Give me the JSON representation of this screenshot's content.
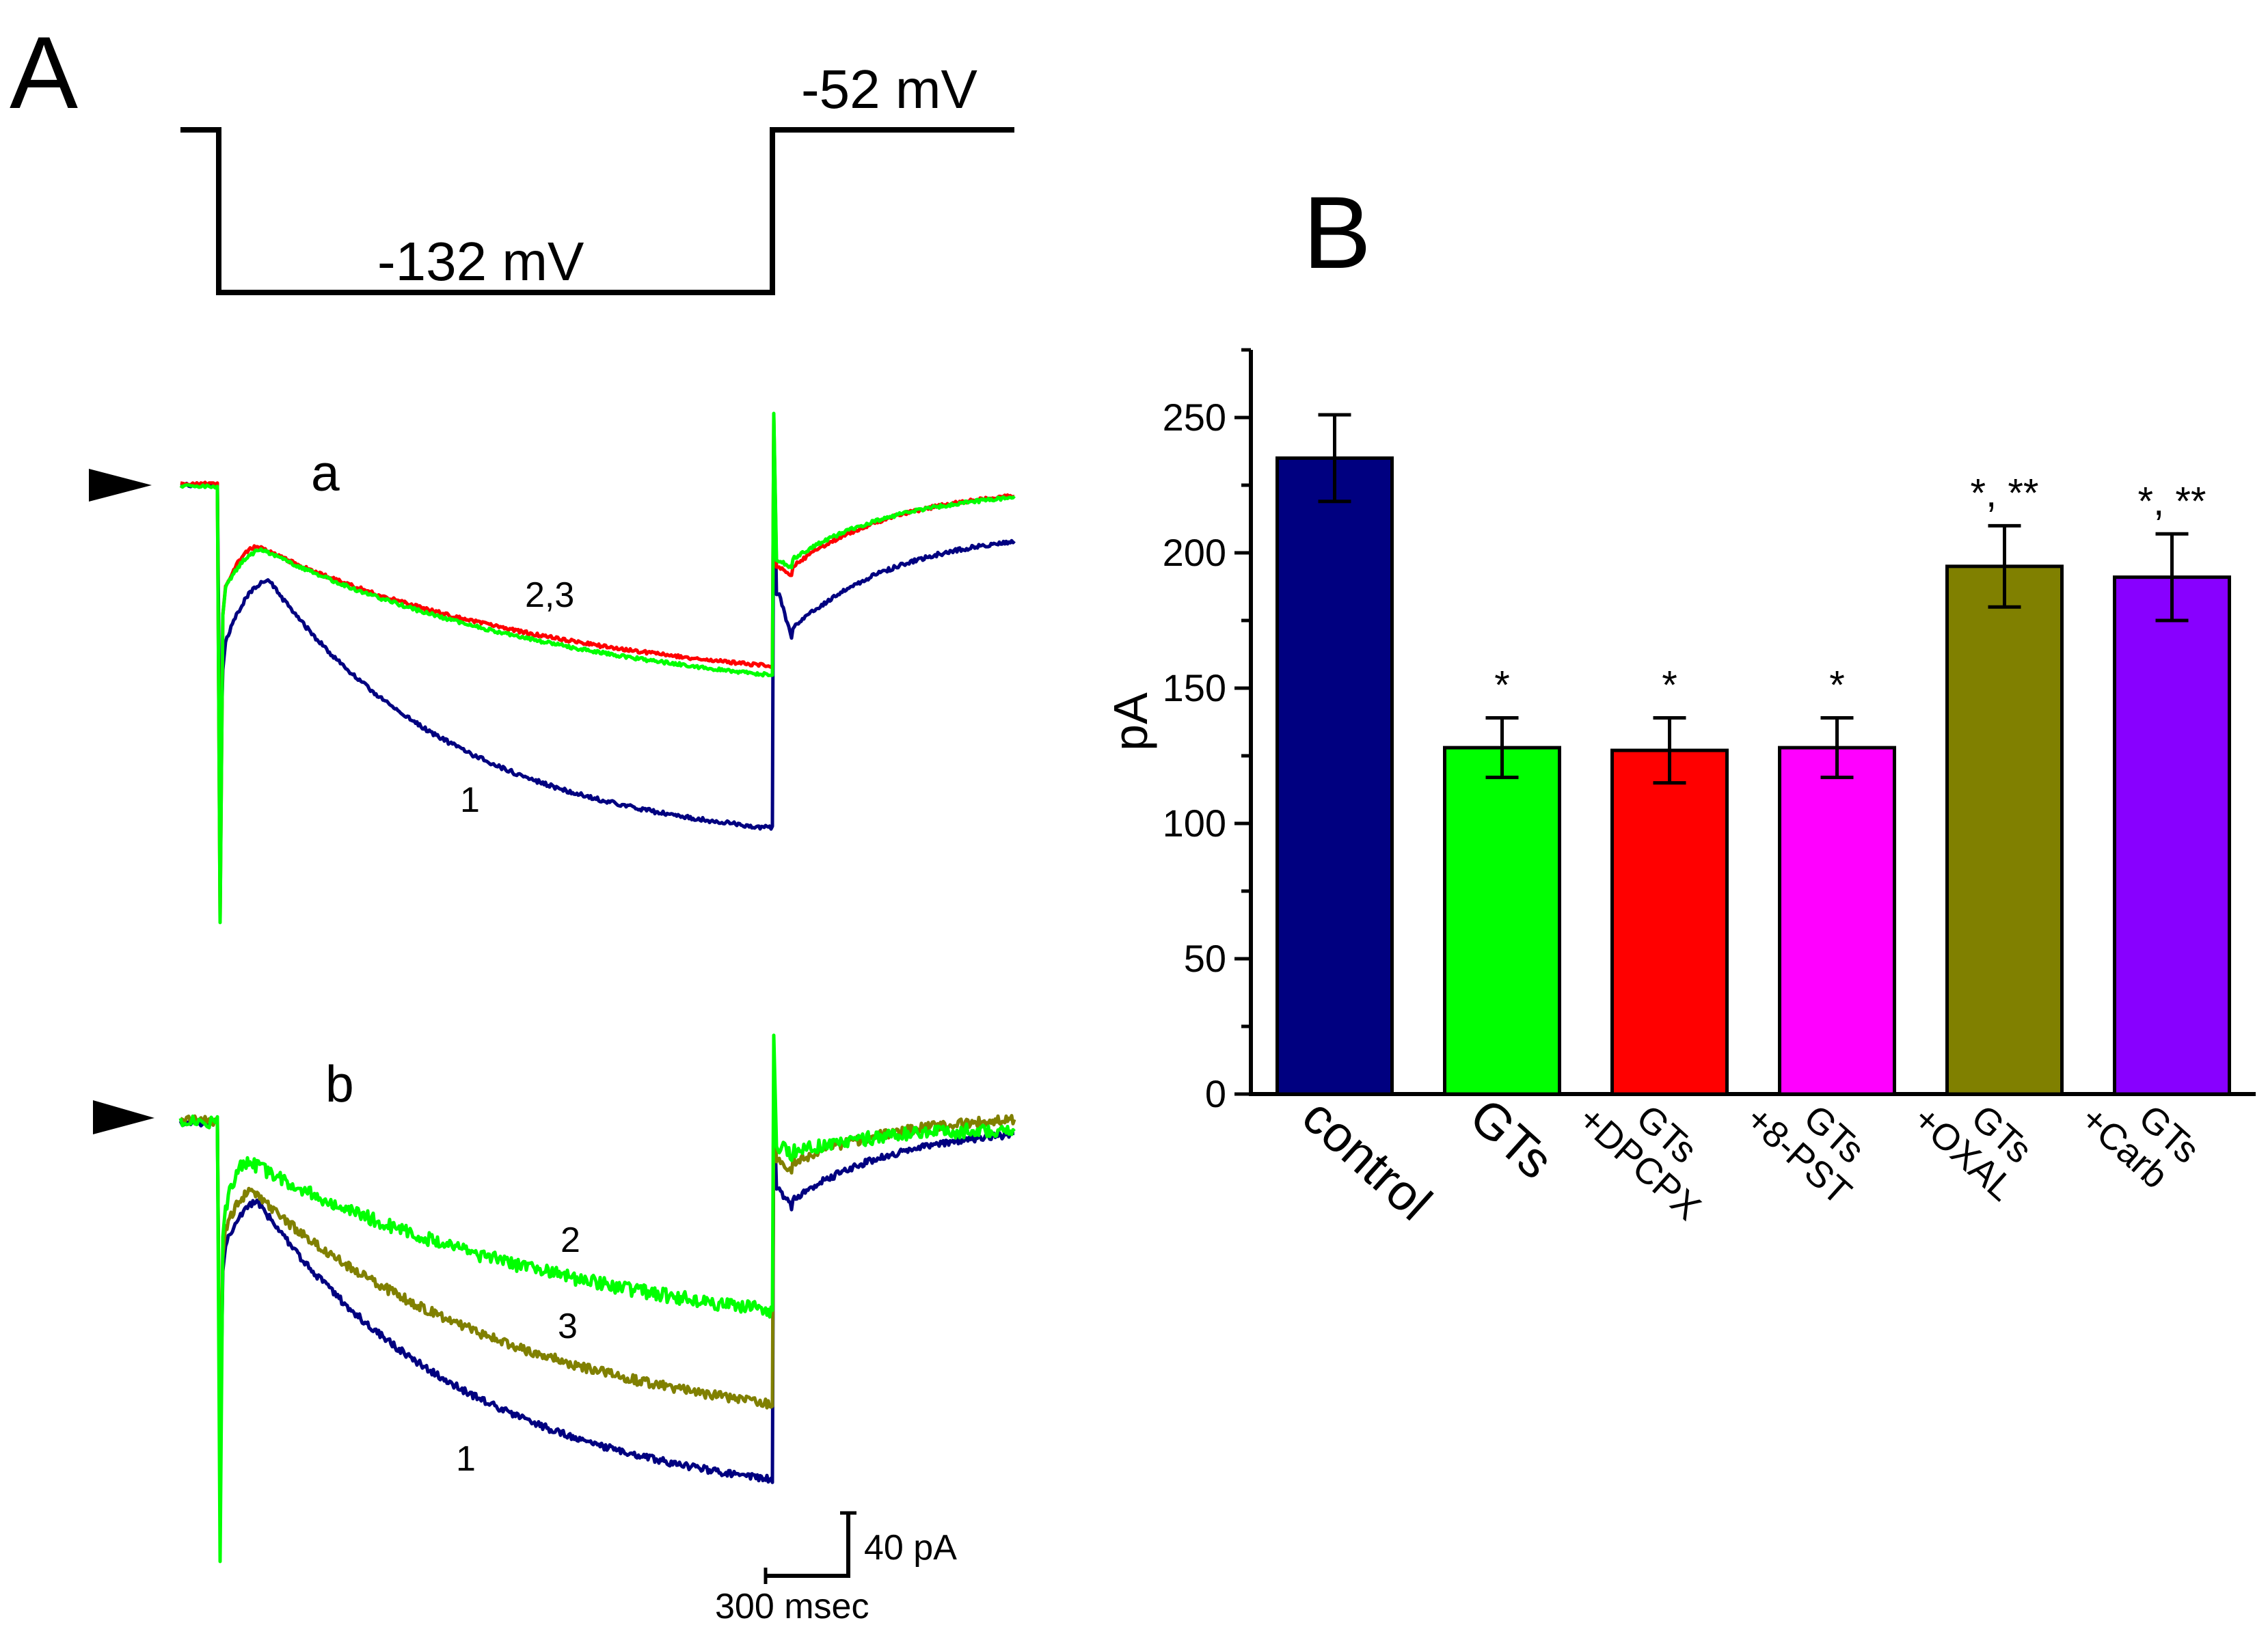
{
  "panel_a": {
    "label": "A",
    "protocol": {
      "hold_label": "-52 mV",
      "step_label": "-132 mV"
    },
    "sub_a": {
      "label": "a",
      "trace_labels": [
        "1",
        "2,3"
      ]
    },
    "sub_b": {
      "label": "b",
      "trace_labels": [
        "1",
        "2",
        "3"
      ]
    },
    "scalebar": {
      "y_label": "40 pA",
      "x_label": "300 msec"
    },
    "colors": {
      "trace1": "#000080",
      "trace2": "#00ff00",
      "trace3_a": "#ff0000",
      "trace3_b": "#808000"
    }
  },
  "panel_b": {
    "label": "B"
  },
  "chart_data": {
    "type": "bar",
    "ylabel": "pA",
    "ylim": [
      0,
      275
    ],
    "yticks": [
      0,
      50,
      100,
      150,
      200,
      250
    ],
    "categories": [
      [
        "control"
      ],
      [
        "GTs"
      ],
      [
        "GTs",
        "+DPCPX"
      ],
      [
        "GTs",
        "+8-PST"
      ],
      [
        "GTs",
        "+OXAL"
      ],
      [
        "GTs",
        "+Carb"
      ]
    ],
    "values": [
      235,
      128,
      127,
      128,
      195,
      191
    ],
    "errors": [
      16,
      11,
      12,
      11,
      15,
      16
    ],
    "annotations": [
      "",
      "*",
      "*",
      "*",
      "*, **",
      "*, **"
    ],
    "colors": [
      "#000080",
      "#00ff00",
      "#ff0000",
      "#ff00ff",
      "#808000",
      "#8800ff"
    ]
  }
}
